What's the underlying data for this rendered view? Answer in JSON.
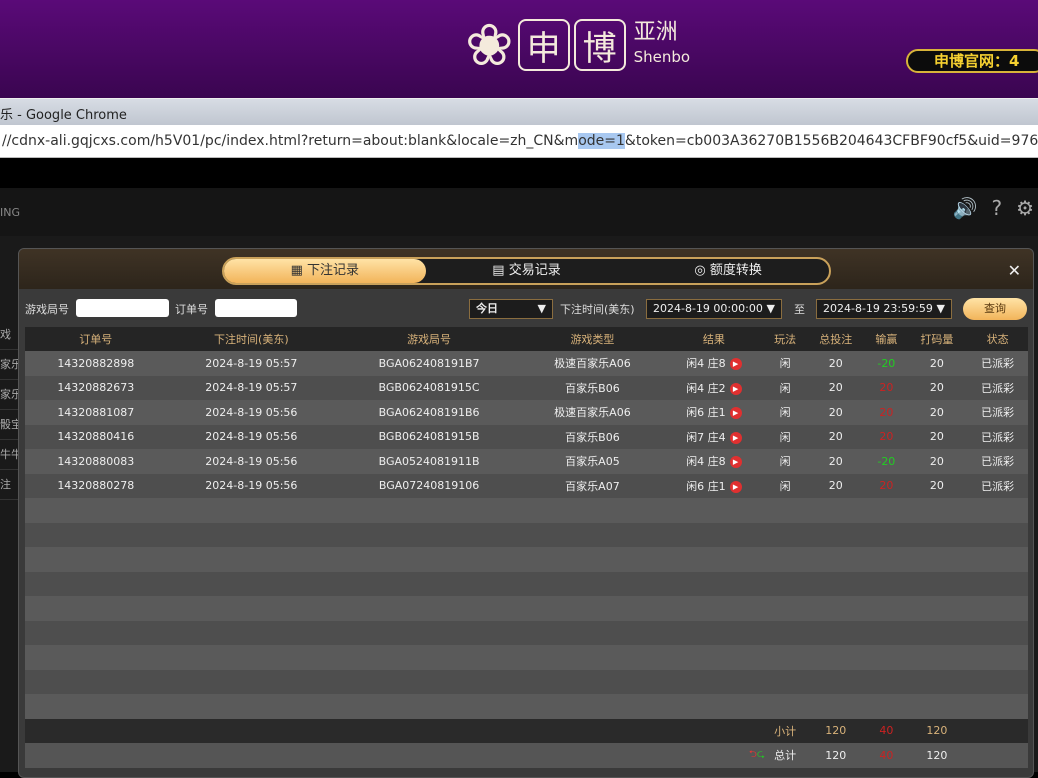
{
  "banner": {
    "brand_cn_1": "申",
    "brand_cn_2": "博",
    "brand_region": "亚洲",
    "brand_en": "Shenbo",
    "site_label": "申博官网：4"
  },
  "browser": {
    "title": "乐 - Google Chrome",
    "url_pre": "//cdnx-ali.gqjcxs.com/h5V01/pc/index.html?return=about:blank&locale=zh_CN&m",
    "url_sel": "ode=1",
    "url_post": "&token=cb003A36270B1556B204643CFBF90cf5&uid=976627467"
  },
  "game": {
    "logo_fragment": "ING",
    "side_items": [
      "戏",
      "家乐",
      "家乐",
      "骰宝",
      "牛牛",
      "注"
    ]
  },
  "modal": {
    "tabs": [
      {
        "label": "下注记录",
        "icon": "calendar-icon",
        "active": true
      },
      {
        "label": "交易记录",
        "icon": "clipboard-icon"
      },
      {
        "label": "额度转换",
        "icon": "coins-icon"
      }
    ],
    "filters": {
      "game_round_label": "游戏局号",
      "game_round_value": "",
      "order_label": "订单号",
      "order_value": "",
      "range": "今日",
      "time_label": "下注时间(美东)",
      "start": "2024-8-19 00:00:00",
      "to_label": "至",
      "end": "2024-8-19 23:59:59",
      "query": "查询"
    },
    "columns": [
      "订单号",
      "下注时间(美东)",
      "游戏局号",
      "游戏类型",
      "结果",
      "玩法",
      "总投注",
      "输赢",
      "打码量",
      "状态"
    ],
    "rows": [
      [
        "14320882898",
        "2024-8-19 05:57",
        "BGA062408191B7",
        "极速百家乐A06",
        "闲4 庄8",
        "闲",
        "20",
        "-20",
        "20",
        "已派彩"
      ],
      [
        "14320882673",
        "2024-8-19 05:57",
        "BGB0624081915C",
        "百家乐B06",
        "闲4 庄2",
        "闲",
        "20",
        "20",
        "20",
        "已派彩"
      ],
      [
        "14320881087",
        "2024-8-19 05:56",
        "BGA062408191B6",
        "极速百家乐A06",
        "闲6 庄1",
        "闲",
        "20",
        "20",
        "20",
        "已派彩"
      ],
      [
        "14320880416",
        "2024-8-19 05:56",
        "BGB0624081915B",
        "百家乐B06",
        "闲7 庄4",
        "闲",
        "20",
        "20",
        "20",
        "已派彩"
      ],
      [
        "14320880083",
        "2024-8-19 05:56",
        "BGA0524081911B",
        "百家乐A05",
        "闲4 庄8",
        "闲",
        "20",
        "-20",
        "20",
        "已派彩"
      ],
      [
        "14320880278",
        "2024-8-19 05:56",
        "BGA07240819106",
        "百家乐A07",
        "闲6 庄1",
        "闲",
        "20",
        "20",
        "20",
        "已派彩"
      ]
    ],
    "subtotal": {
      "label": "小计",
      "bet": "120",
      "winloss": "40",
      "turnover": "120"
    },
    "total": {
      "label": "总计",
      "bet": "120",
      "winloss": "40",
      "turnover": "120"
    },
    "colors": {
      "win": "#22cc22",
      "lose": "#cc2222",
      "accent": "#f2b45a"
    }
  }
}
